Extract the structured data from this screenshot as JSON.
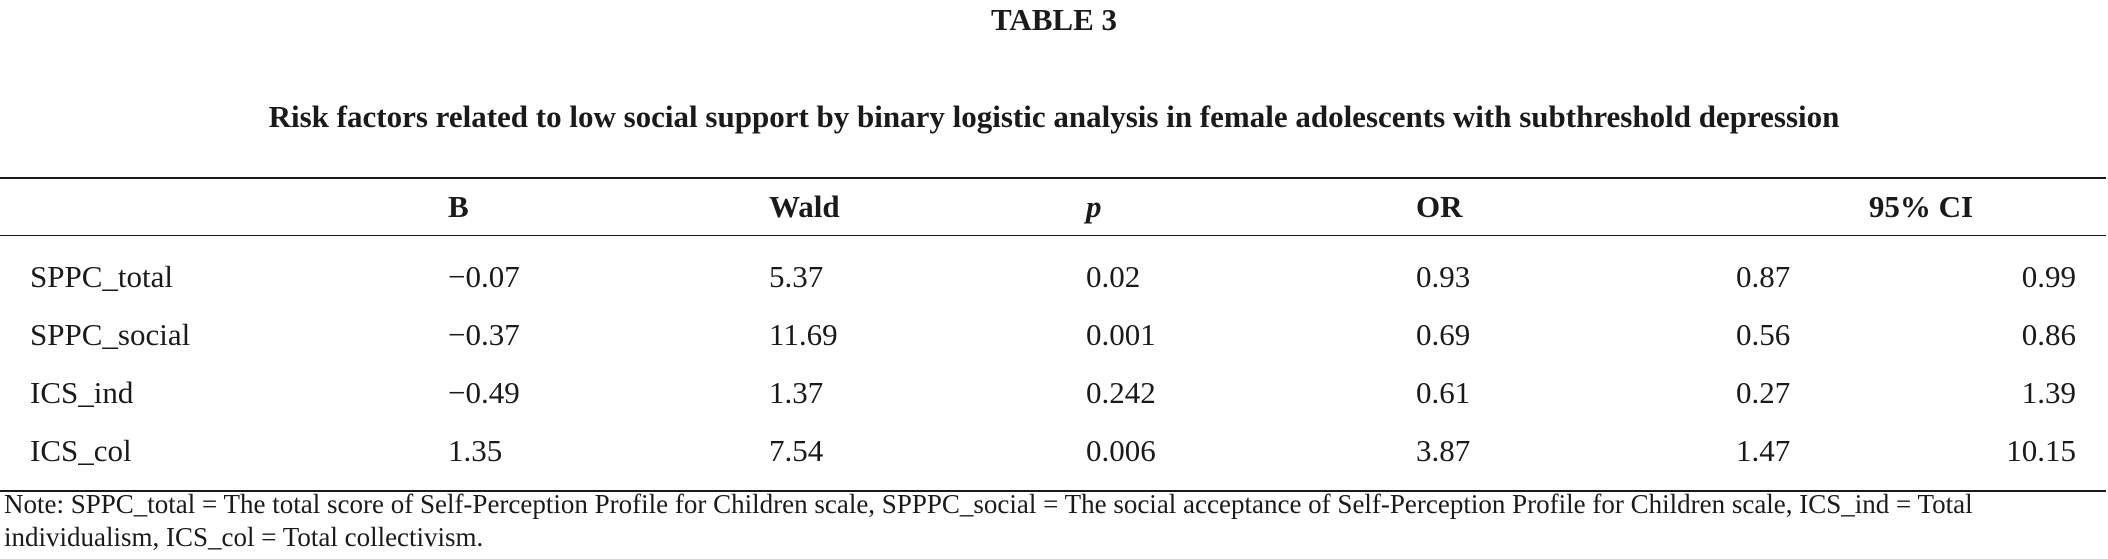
{
  "table_label": "TABLE 3",
  "caption": "Risk factors related to low social support by binary logistic analysis in female adolescents with subthreshold depression",
  "columns": {
    "b": "B",
    "wald": "Wald",
    "p": "p",
    "or": "OR",
    "ci": "95% CI"
  },
  "rows": [
    {
      "label": "SPPC_total",
      "b": "−0.07",
      "wald": "5.37",
      "p": "0.02",
      "or": "0.93",
      "ci_low": "0.87",
      "ci_high": "0.99"
    },
    {
      "label": "SPPC_social",
      "b": "−0.37",
      "wald": "11.69",
      "p": "0.001",
      "or": "0.69",
      "ci_low": "0.56",
      "ci_high": "0.86"
    },
    {
      "label": "ICS_ind",
      "b": "−0.49",
      "wald": "1.37",
      "p": "0.242",
      "or": "0.61",
      "ci_low": "0.27",
      "ci_high": "1.39"
    },
    {
      "label": "ICS_col",
      "b": "1.35",
      "wald": "7.54",
      "p": "0.006",
      "or": "3.87",
      "ci_low": "1.47",
      "ci_high": "10.15"
    }
  ],
  "note": "Note: SPPC_total = The total score of Self-Perception Profile for Children scale, SPPPC_social = The social acceptance of Self-Perception Profile for Children scale, ICS_ind = Total individualism, ICS_col = Total collectivism."
}
